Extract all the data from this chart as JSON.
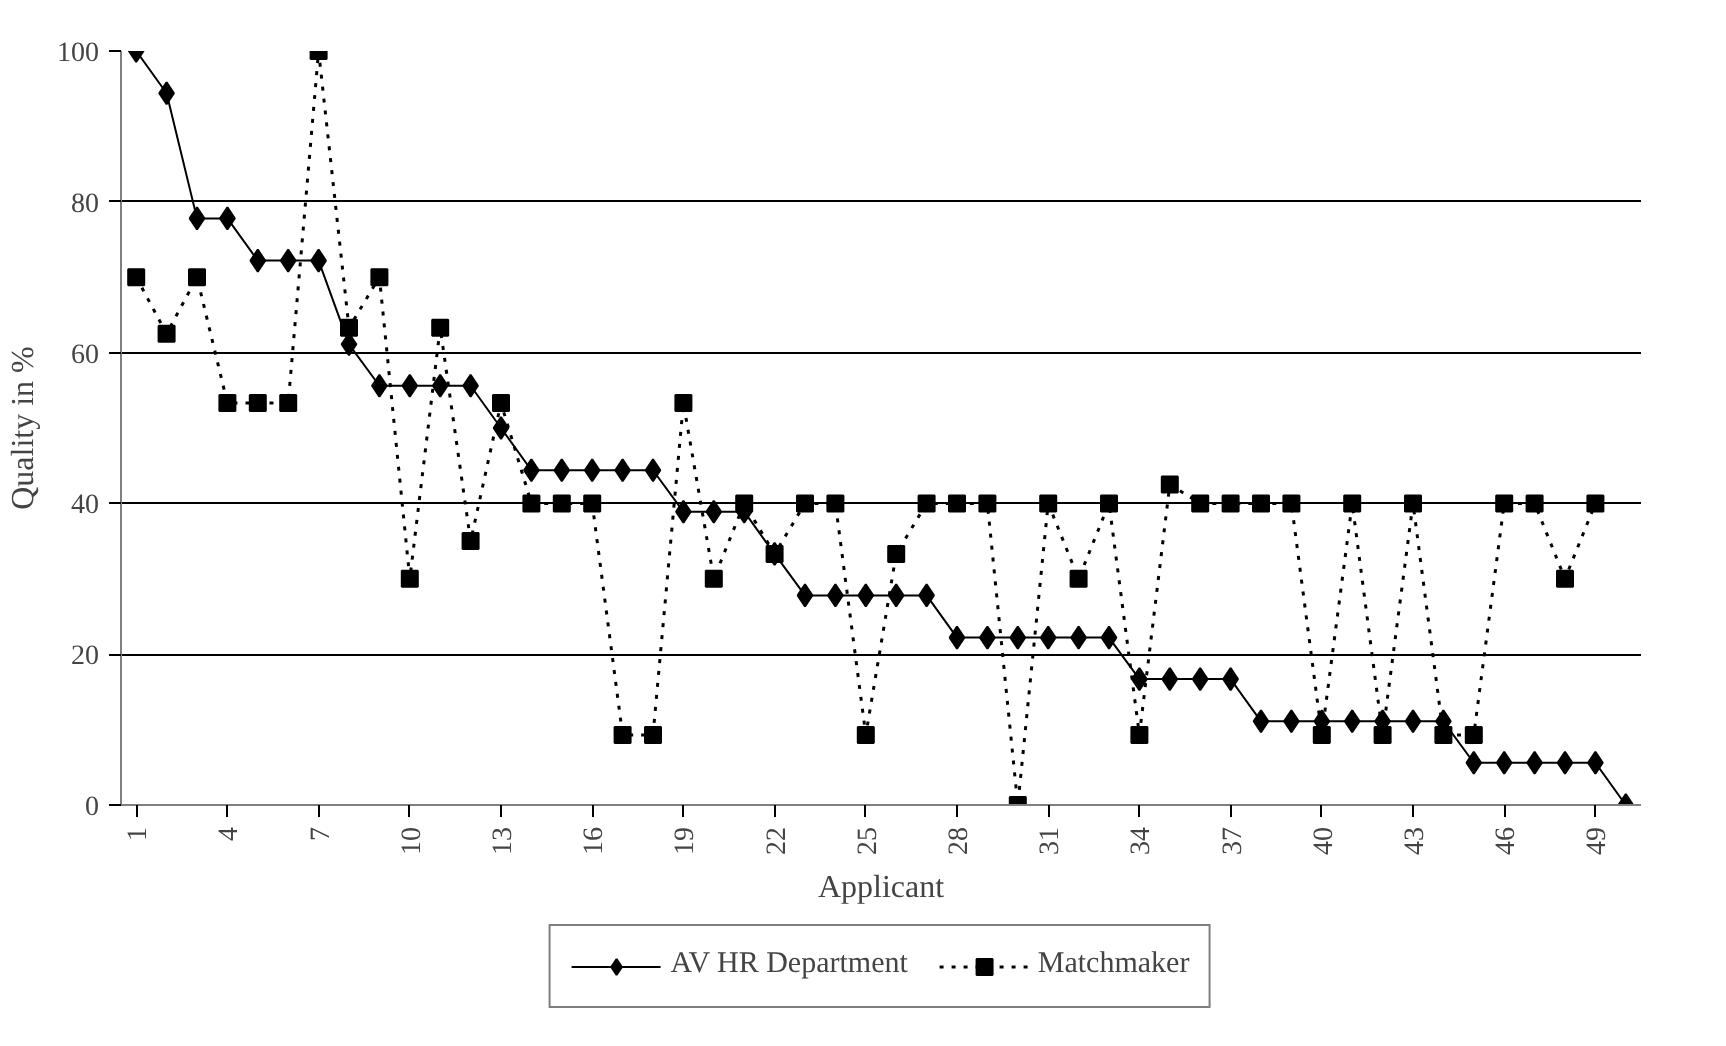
{
  "chart_data": {
    "type": "line",
    "xlabel": "Applicant",
    "ylabel": "Quality in %",
    "categories": [
      "1",
      null,
      null,
      "4",
      null,
      null,
      "7",
      null,
      null,
      "10",
      null,
      null,
      "13",
      null,
      null,
      "16",
      null,
      null,
      "19",
      null,
      null,
      "22",
      null,
      null,
      "25",
      null,
      null,
      "28",
      null,
      null,
      "31",
      null,
      null,
      "34",
      null,
      null,
      "37",
      null,
      null,
      "40",
      null,
      null,
      "43",
      null,
      null,
      "46",
      null,
      null,
      "49",
      null
    ],
    "ylim": [
      0,
      100
    ],
    "yticks": [
      0,
      20,
      40,
      60,
      80,
      100
    ],
    "grid": "y",
    "legend": "bottom",
    "series": [
      {
        "name": "AV HR Department",
        "color": "#000000",
        "marker": "diamond",
        "line_style": "solid",
        "values": [
          100,
          94.4,
          77.8,
          77.8,
          72.2,
          72.2,
          72.2,
          61.1,
          55.6,
          55.6,
          55.6,
          55.6,
          50,
          44.4,
          44.4,
          44.4,
          44.4,
          44.4,
          38.9,
          38.9,
          38.9,
          33.3,
          27.8,
          27.8,
          27.8,
          27.8,
          27.8,
          22.2,
          22.2,
          22.2,
          22.2,
          22.2,
          22.2,
          16.7,
          16.7,
          16.7,
          16.7,
          11.1,
          11.1,
          11.1,
          11.1,
          11.1,
          11.1,
          11.1,
          5.6,
          5.6,
          5.6,
          5.6,
          5.6,
          0
        ]
      },
      {
        "name": "Matchmaker",
        "color": "#000000",
        "marker": "square",
        "line_style": "dotted",
        "values": [
          70,
          62.5,
          70,
          53.3,
          53.3,
          53.3,
          100,
          63.3,
          70,
          30,
          63.3,
          35,
          53.3,
          40,
          40,
          40,
          9.3,
          9.3,
          53.3,
          30,
          40,
          33.3,
          40,
          40,
          9.3,
          33.3,
          40,
          40,
          40,
          0,
          40,
          30,
          40,
          9.3,
          42.5,
          40,
          40,
          40,
          40,
          9.3,
          40,
          9.3,
          40,
          9.3,
          9.3,
          40,
          40,
          30,
          40,
          null
        ]
      }
    ]
  }
}
